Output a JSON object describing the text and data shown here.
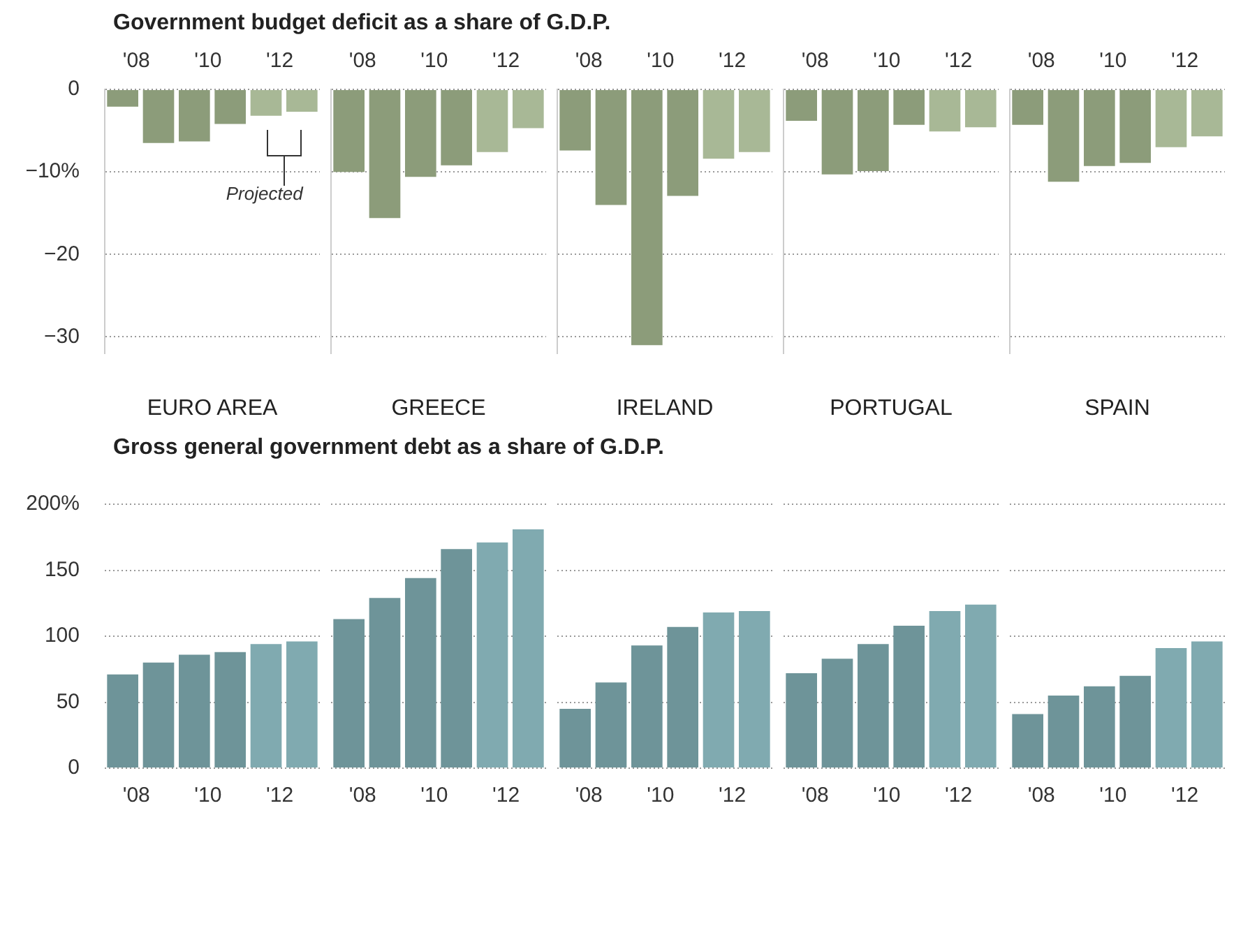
{
  "chart_data": [
    {
      "type": "bar",
      "title": "Government budget deficit as a share of G.D.P.",
      "xlabel": "EURO AREA",
      "categories": [
        "'08",
        null,
        "'10",
        null,
        "'12",
        null
      ],
      "values": [
        -2.1,
        -6.5,
        -6.3,
        -4.2,
        -3.2,
        -2.7
      ],
      "colors": [
        "#8c9c7a",
        "#8c9c7a",
        "#8c9c7a",
        "#8c9c7a",
        "#a8b896",
        "#a8b896"
      ],
      "ylim": [
        -32,
        0
      ],
      "yticks": [
        {
          "value": 0,
          "label": "0"
        },
        {
          "value": -10,
          "label": "−10%"
        },
        {
          "value": -20,
          "label": "−20"
        },
        {
          "value": -30,
          "label": "−30"
        }
      ],
      "grid": "y",
      "legend": false,
      "annotations": [
        "Projected"
      ]
    },
    {
      "type": "bar",
      "xlabel": "GREECE",
      "categories": [
        "'08",
        null,
        "'10",
        null,
        "'12",
        null
      ],
      "values": [
        -10.0,
        -15.6,
        -10.6,
        -9.2,
        -7.6,
        -4.7
      ],
      "colors": [
        "#8c9c7a",
        "#8c9c7a",
        "#8c9c7a",
        "#8c9c7a",
        "#a8b896",
        "#a8b896"
      ],
      "ylim": [
        -32,
        0
      ],
      "yticks": [
        0,
        -10,
        -20,
        -30
      ],
      "grid": "y",
      "legend": false,
      "tick_labels": "x"
    },
    {
      "type": "bar",
      "xlabel": "IRELAND",
      "categories": [
        "'08",
        null,
        "'10",
        null,
        "'12",
        null
      ],
      "values": [
        -7.4,
        -14.0,
        -31.0,
        -12.9,
        -8.4,
        -7.6
      ],
      "colors": [
        "#8c9c7a",
        "#8c9c7a",
        "#8c9c7a",
        "#8c9c7a",
        "#a8b896",
        "#a8b896"
      ],
      "ylim": [
        -32,
        0
      ],
      "yticks": [
        0,
        -10,
        -20,
        -30
      ],
      "grid": "y",
      "legend": false,
      "tick_labels": "x"
    },
    {
      "type": "bar",
      "xlabel": "PORTUGAL",
      "categories": [
        "'08",
        null,
        "'10",
        null,
        "'12",
        null
      ],
      "values": [
        -3.8,
        -10.3,
        -9.9,
        -4.3,
        -5.1,
        -4.6
      ],
      "colors": [
        "#8c9c7a",
        "#8c9c7a",
        "#8c9c7a",
        "#8c9c7a",
        "#a8b896",
        "#a8b896"
      ],
      "ylim": [
        -32,
        0
      ],
      "yticks": [
        0,
        -10,
        -20,
        -30
      ],
      "grid": "y",
      "legend": false,
      "tick_labels": "x"
    },
    {
      "type": "bar",
      "xlabel": "SPAIN",
      "categories": [
        "'08",
        null,
        "'10",
        null,
        "'12",
        null
      ],
      "values": [
        -4.3,
        -11.2,
        -9.3,
        -8.9,
        -7.0,
        -5.7
      ],
      "colors": [
        "#8c9c7a",
        "#8c9c7a",
        "#8c9c7a",
        "#8c9c7a",
        "#a8b896",
        "#a8b896"
      ],
      "ylim": [
        -32,
        0
      ],
      "yticks": [
        0,
        -10,
        -20,
        -30
      ],
      "grid": "y",
      "legend": false,
      "tick_labels": "x"
    },
    {
      "type": "bar",
      "title": "Gross general government debt as a share of G.D.P.",
      "categories": [
        "'08",
        null,
        "'10",
        null,
        "'12",
        null
      ],
      "values": [
        71,
        80,
        86,
        88,
        94,
        96
      ],
      "colors": [
        "#6e9499",
        "#6e9499",
        "#6e9499",
        "#6e9499",
        "#80aab0",
        "#80aab0"
      ],
      "ylim": [
        0,
        200
      ],
      "yticks": [
        {
          "value": 0,
          "label": "0"
        },
        {
          "value": 50,
          "label": "50"
        },
        {
          "value": 100,
          "label": "100"
        },
        {
          "value": 150,
          "label": "150"
        },
        {
          "value": 200,
          "label": "200%"
        }
      ],
      "grid": "y",
      "legend": false
    },
    {
      "type": "bar",
      "categories": [
        "'08",
        null,
        "'10",
        null,
        "'12",
        null
      ],
      "values": [
        113,
        129,
        144,
        166,
        171,
        181
      ],
      "colors": [
        "#6e9499",
        "#6e9499",
        "#6e9499",
        "#6e9499",
        "#80aab0",
        "#80aab0"
      ],
      "ylim": [
        0,
        200
      ],
      "yticks": [
        0,
        50,
        100,
        150,
        200
      ],
      "grid": "y",
      "legend": false,
      "tick_labels": "x"
    },
    {
      "type": "bar",
      "categories": [
        "'08",
        null,
        "'10",
        null,
        "'12",
        null
      ],
      "values": [
        45,
        65,
        93,
        107,
        118,
        119
      ],
      "colors": [
        "#6e9499",
        "#6e9499",
        "#6e9499",
        "#6e9499",
        "#80aab0",
        "#80aab0"
      ],
      "ylim": [
        0,
        200
      ],
      "yticks": [
        0,
        50,
        100,
        150,
        200
      ],
      "grid": "y",
      "legend": false,
      "tick_labels": "x"
    },
    {
      "type": "bar",
      "categories": [
        "'08",
        null,
        "'10",
        null,
        "'12",
        null
      ],
      "values": [
        72,
        83,
        94,
        108,
        119,
        124
      ],
      "colors": [
        "#6e9499",
        "#6e9499",
        "#6e9499",
        "#6e9499",
        "#80aab0",
        "#80aab0"
      ],
      "ylim": [
        0,
        200
      ],
      "yticks": [
        0,
        50,
        100,
        150,
        200
      ],
      "grid": "y",
      "legend": false,
      "tick_labels": "x"
    },
    {
      "type": "bar",
      "categories": [
        "'08",
        null,
        "'10",
        null,
        "'12",
        null
      ],
      "values": [
        41,
        55,
        62,
        70,
        91,
        96
      ],
      "colors": [
        "#6e9499",
        "#6e9499",
        "#6e9499",
        "#6e9499",
        "#80aab0",
        "#80aab0"
      ],
      "ylim": [
        0,
        200
      ],
      "yticks": [
        0,
        50,
        100,
        150,
        200
      ],
      "grid": "y",
      "legend": false,
      "tick_labels": "x"
    }
  ]
}
